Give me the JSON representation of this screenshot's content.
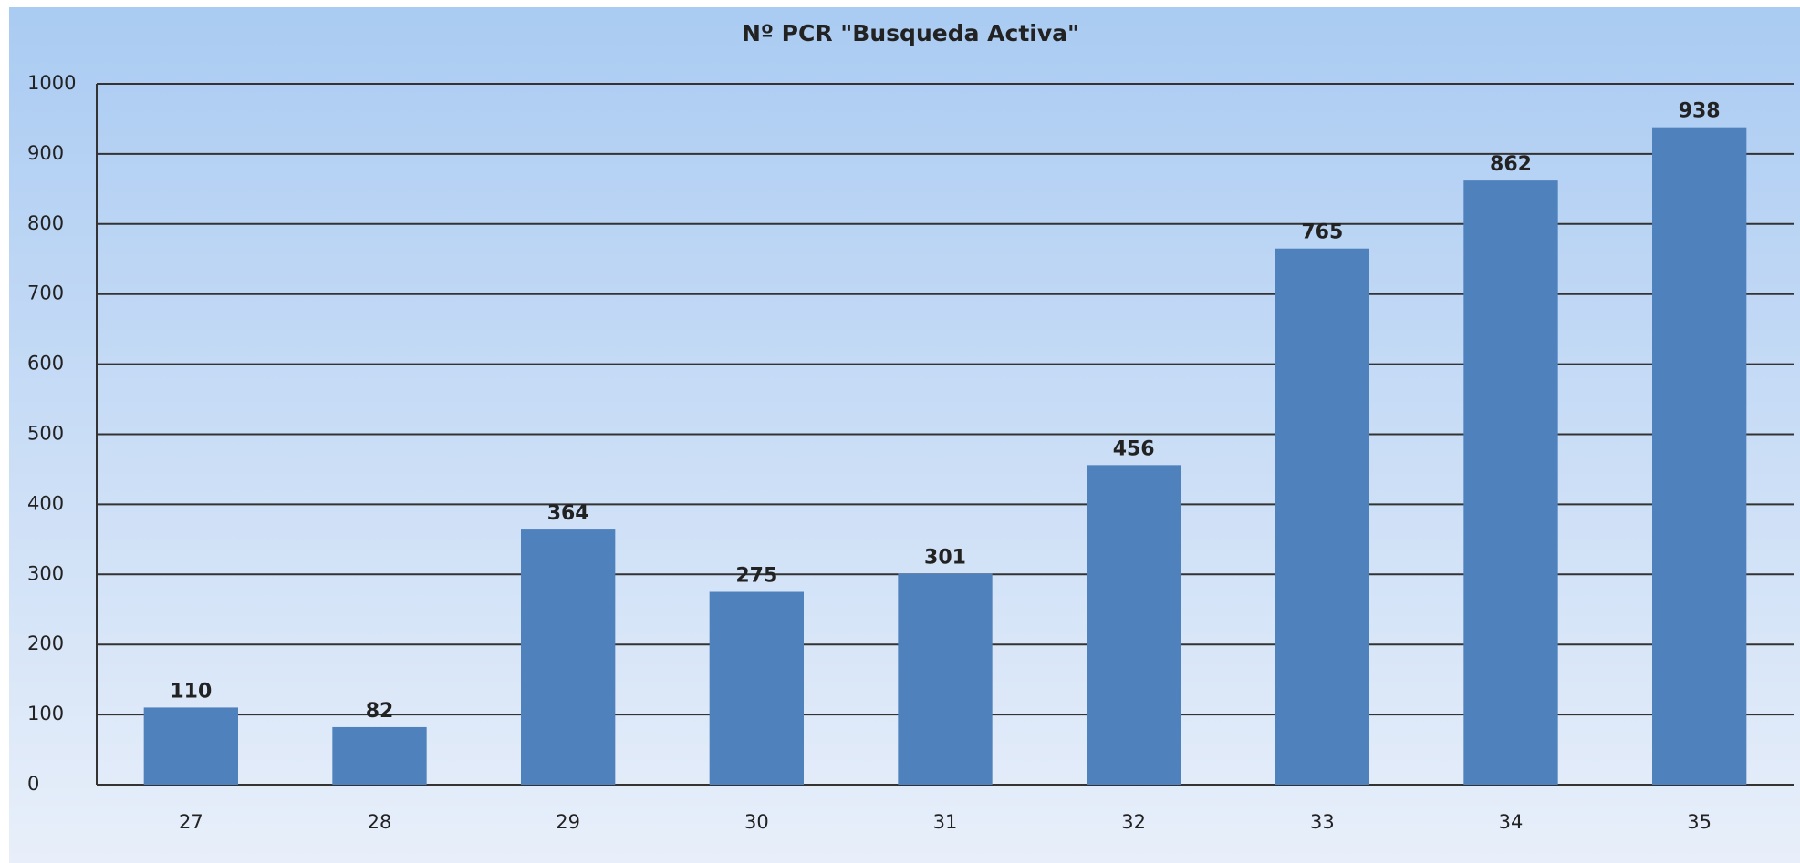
{
  "chart_data": {
    "type": "bar",
    "title": "Nº PCR \"Busqueda Activa\"",
    "categories": [
      "27",
      "28",
      "29",
      "30",
      "31",
      "32",
      "33",
      "34",
      "35"
    ],
    "values": [
      110,
      82,
      364,
      275,
      301,
      456,
      765,
      862,
      938
    ],
    "color": "#4f81bd",
    "label_color": "#c00000",
    "ylim": [
      0,
      1000
    ],
    "yticks": [
      0,
      100,
      200,
      300,
      400,
      500,
      600,
      700,
      800,
      900,
      1000
    ],
    "grid": true
  }
}
